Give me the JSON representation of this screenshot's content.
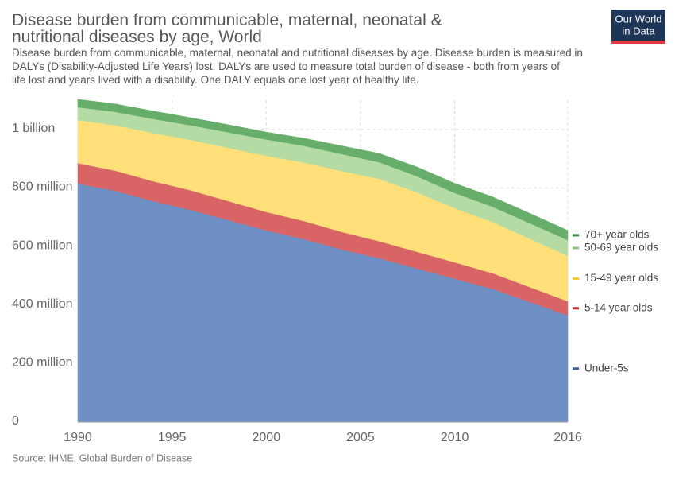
{
  "logo": {
    "line1": "Our World",
    "line2": "in Data"
  },
  "chart_data": {
    "type": "stacked_area",
    "title": "Disease burden from communicable, maternal, neonatal & nutritional diseases by age, World",
    "subtitle": "Disease burden from communicable, maternal, neonatal and nutritional diseases by age. Disease burden is measured in DALYs (Disability-Adjusted Life Years) lost. DALYs are used to measure total burden of disease - both from years of life lost and years lived with a disability. One DALY equals one lost year of healthy life.",
    "source": "Source: IHME, Global Burden of Disease",
    "x": [
      1990,
      1992,
      1994,
      1996,
      1998,
      2000,
      2002,
      2004,
      2006,
      2008,
      2010,
      2012,
      2014,
      2016
    ],
    "xlim": [
      1990,
      2016
    ],
    "xticks": [
      1990,
      1995,
      2000,
      2005,
      2010,
      2016
    ],
    "ylim": [
      0,
      1100
    ],
    "yticks": [
      0,
      {
        "value": 200,
        "label": "200 million"
      },
      {
        "value": 400,
        "label": "400 million"
      },
      {
        "value": 600,
        "label": "600 million"
      },
      {
        "value": 800,
        "label": "800 million"
      },
      {
        "value": 1000,
        "label": "1 billion"
      }
    ],
    "grid": true,
    "series": [
      {
        "name": "Under-5s",
        "color": "#6d8fc4",
        "legend_color": "#3b5ba5",
        "values": [
          815,
          790,
          755,
          725,
          690,
          655,
          625,
          590,
          560,
          525,
          490,
          455,
          410,
          365
        ]
      },
      {
        "name": "5-14 year olds",
        "color": "#d96466",
        "legend_color": "#c62828",
        "values": [
          70,
          69,
          68,
          67,
          65,
          63,
          62,
          60,
          58,
          57,
          56,
          54,
          51,
          48
        ]
      },
      {
        "name": "15-49 year olds",
        "color": "#fedf78",
        "legend_color": "#f5c92d",
        "values": [
          147,
          155,
          165,
          172,
          182,
          192,
          200,
          208,
          213,
          203,
          185,
          175,
          165,
          155
        ]
      },
      {
        "name": "50-69 year olds",
        "color": "#b5dba5",
        "legend_color": "#8cc67c",
        "values": [
          44,
          46,
          48,
          50,
          53,
          56,
          57,
          58,
          57,
          55,
          52,
          52,
          53,
          54
        ]
      },
      {
        "name": "70+ year olds",
        "color": "#67ae6b",
        "legend_color": "#2e8b3a",
        "values": [
          27,
          27,
          27,
          26,
          26,
          25,
          26,
          28,
          30,
          32,
          33,
          34,
          34,
          33
        ]
      }
    ]
  }
}
